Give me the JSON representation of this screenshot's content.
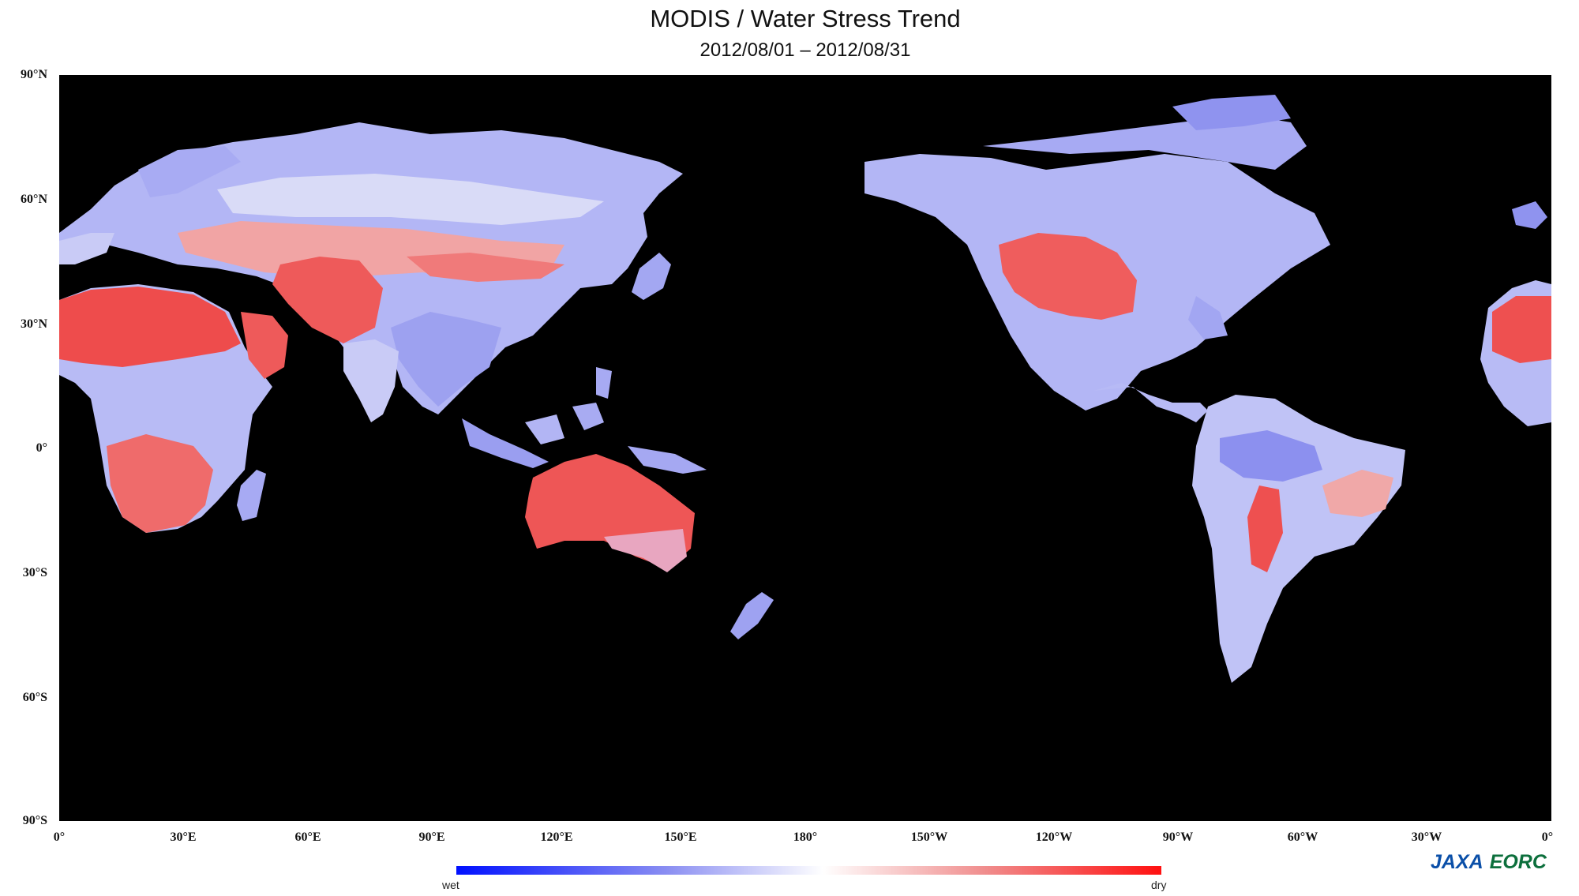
{
  "title": "MODIS / Water Stress Trend",
  "subtitle": "2012/08/01 – 2012/08/31",
  "lat_labels": [
    "90°N",
    "60°N",
    "30°N",
    "0°",
    "30°S",
    "60°S",
    "90°S"
  ],
  "lon_labels": [
    "0°",
    "30°E",
    "60°E",
    "90°E",
    "120°E",
    "150°E",
    "180°",
    "150°W",
    "120°W",
    "90°W",
    "60°W",
    "30°W",
    "0°"
  ],
  "colorbar": {
    "min_label": "wet",
    "max_label": "dry",
    "colors": [
      "#0010ff",
      "#8b8ff2",
      "#ffffff",
      "#f08d8d",
      "#ff1010"
    ]
  },
  "map": {
    "background": "#000000",
    "projection": "equirectangular, 0°–360° longitude",
    "wet_color": "#8a8ff0",
    "neutral_color": "#e6e6f8",
    "dry_color": "#ee4a4a"
  },
  "logo": {
    "jaxa": "JAXA",
    "eorc": "EORC"
  }
}
